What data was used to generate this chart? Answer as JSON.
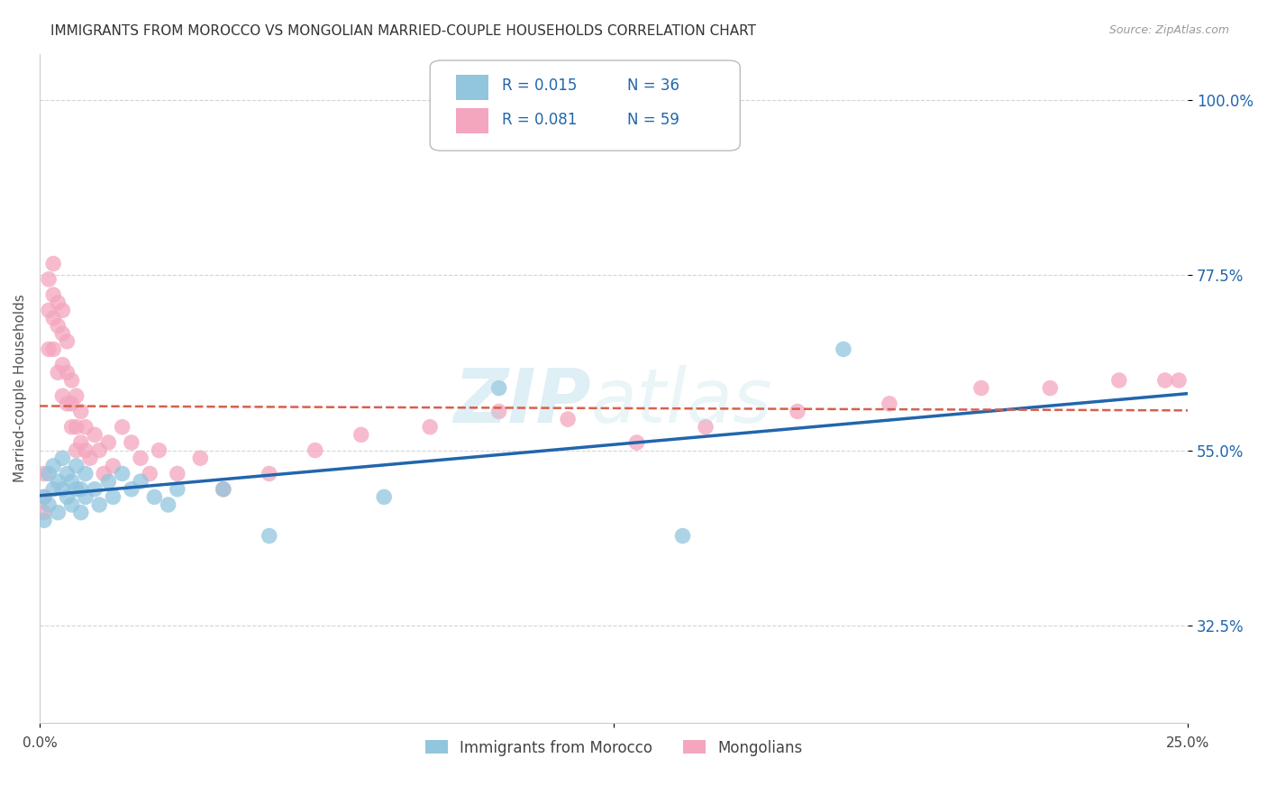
{
  "title": "IMMIGRANTS FROM MOROCCO VS MONGOLIAN MARRIED-COUPLE HOUSEHOLDS CORRELATION CHART",
  "source": "Source: ZipAtlas.com",
  "ylabel": "Married-couple Households",
  "ytick_labels": [
    "32.5%",
    "55.0%",
    "77.5%",
    "100.0%"
  ],
  "ytick_values": [
    0.325,
    0.55,
    0.775,
    1.0
  ],
  "xlim": [
    0.0,
    0.25
  ],
  "ylim": [
    0.2,
    1.06
  ],
  "color_blue": "#92c5de",
  "color_pink": "#f4a6be",
  "color_blue_line": "#2166ac",
  "color_pink_line": "#d6604d",
  "legend_r_color": "#2166ac",
  "background_color": "#ffffff",
  "grid_color": "#d0d0d0",
  "legend_bottom_1": "Immigrants from Morocco",
  "legend_bottom_2": "Mongolians",
  "scatter_blue_x": [
    0.001,
    0.001,
    0.002,
    0.002,
    0.003,
    0.003,
    0.004,
    0.004,
    0.005,
    0.005,
    0.006,
    0.006,
    0.007,
    0.007,
    0.008,
    0.008,
    0.009,
    0.009,
    0.01,
    0.01,
    0.012,
    0.013,
    0.015,
    0.016,
    0.018,
    0.02,
    0.022,
    0.025,
    0.028,
    0.03,
    0.04,
    0.05,
    0.075,
    0.1,
    0.14,
    0.175
  ],
  "scatter_blue_y": [
    0.49,
    0.46,
    0.52,
    0.48,
    0.5,
    0.53,
    0.51,
    0.47,
    0.54,
    0.5,
    0.49,
    0.52,
    0.48,
    0.51,
    0.5,
    0.53,
    0.47,
    0.5,
    0.52,
    0.49,
    0.5,
    0.48,
    0.51,
    0.49,
    0.52,
    0.5,
    0.51,
    0.49,
    0.48,
    0.5,
    0.5,
    0.44,
    0.49,
    0.63,
    0.44,
    0.68
  ],
  "scatter_pink_x": [
    0.001,
    0.001,
    0.001,
    0.002,
    0.002,
    0.002,
    0.003,
    0.003,
    0.003,
    0.003,
    0.004,
    0.004,
    0.004,
    0.005,
    0.005,
    0.005,
    0.005,
    0.006,
    0.006,
    0.006,
    0.007,
    0.007,
    0.007,
    0.008,
    0.008,
    0.008,
    0.009,
    0.009,
    0.01,
    0.01,
    0.011,
    0.012,
    0.013,
    0.014,
    0.015,
    0.016,
    0.018,
    0.02,
    0.022,
    0.024,
    0.026,
    0.03,
    0.035,
    0.04,
    0.05,
    0.06,
    0.07,
    0.085,
    0.1,
    0.115,
    0.13,
    0.145,
    0.165,
    0.185,
    0.205,
    0.22,
    0.235,
    0.245,
    0.248
  ],
  "scatter_pink_y": [
    0.49,
    0.52,
    0.47,
    0.77,
    0.73,
    0.68,
    0.75,
    0.79,
    0.72,
    0.68,
    0.74,
    0.71,
    0.65,
    0.73,
    0.7,
    0.66,
    0.62,
    0.69,
    0.65,
    0.61,
    0.64,
    0.61,
    0.58,
    0.62,
    0.58,
    0.55,
    0.6,
    0.56,
    0.58,
    0.55,
    0.54,
    0.57,
    0.55,
    0.52,
    0.56,
    0.53,
    0.58,
    0.56,
    0.54,
    0.52,
    0.55,
    0.52,
    0.54,
    0.5,
    0.52,
    0.55,
    0.57,
    0.58,
    0.6,
    0.59,
    0.56,
    0.58,
    0.6,
    0.61,
    0.63,
    0.63,
    0.64,
    0.64,
    0.64
  ]
}
